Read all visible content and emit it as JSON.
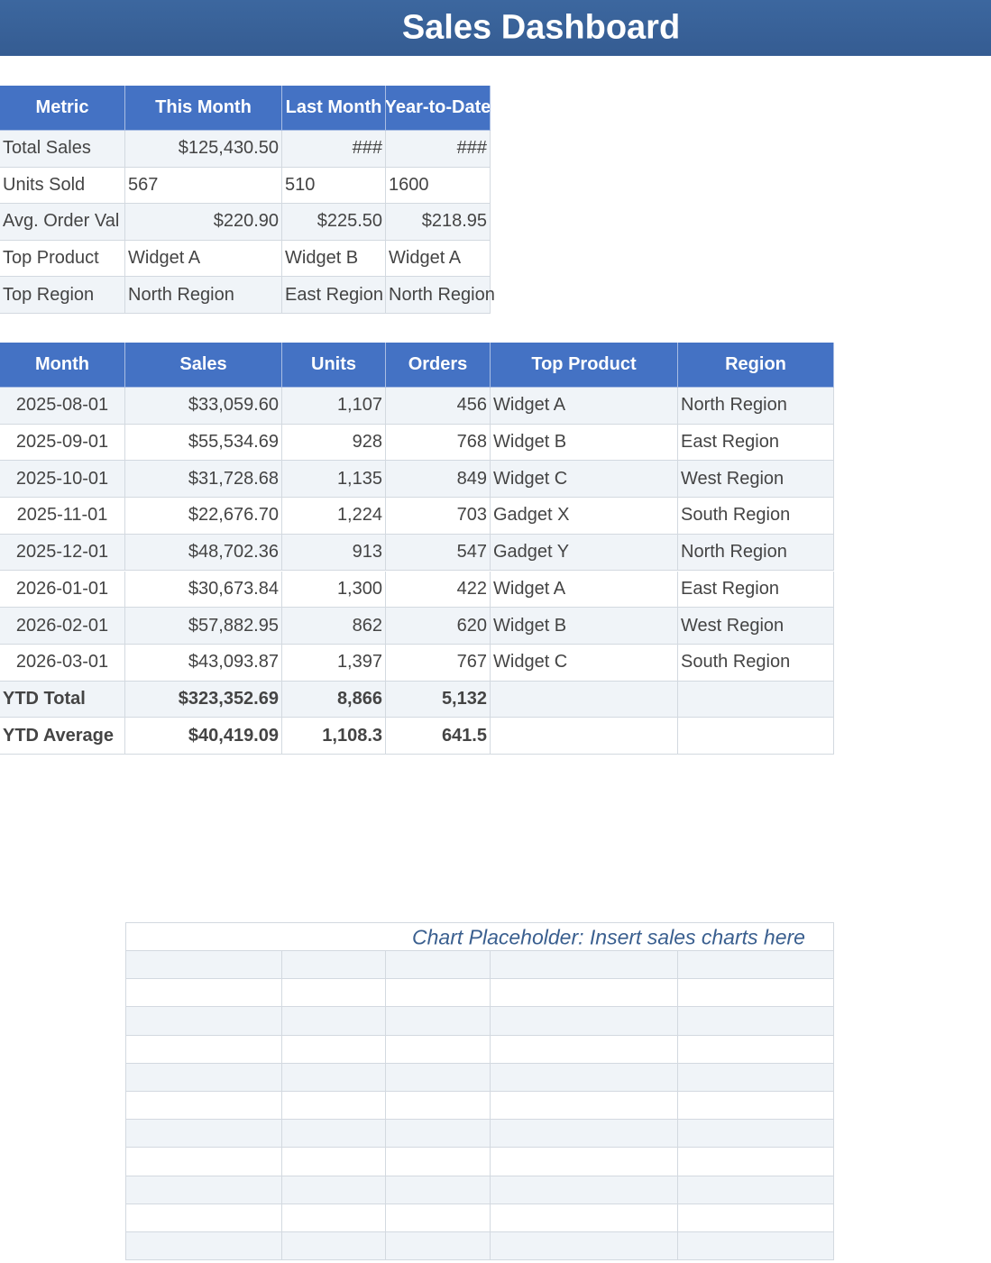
{
  "header": {
    "title": "Sales Dashboard"
  },
  "summary": {
    "columns": [
      "Metric",
      "This Month",
      "Last Month",
      "Year-to-Date"
    ],
    "rows": [
      [
        "Total Sales",
        "$125,430.50",
        "###",
        "###"
      ],
      [
        "Units Sold",
        "567",
        "510",
        "1600"
      ],
      [
        "Avg. Order Val",
        "$220.90",
        "$225.50",
        "$218.95"
      ],
      [
        "Top Product",
        "Widget A",
        "Widget B",
        "Widget A"
      ],
      [
        "Top Region",
        "North Region",
        "East Region",
        "North Region"
      ]
    ]
  },
  "monthly": {
    "columns": [
      "Month",
      "Sales",
      "Units",
      "Orders",
      "Top Product",
      "Region"
    ],
    "rows": [
      [
        "2025-08-01",
        "$33,059.60",
        "1,107",
        "456",
        "Widget A",
        "North Region"
      ],
      [
        "2025-09-01",
        "$55,534.69",
        "928",
        "768",
        "Widget B",
        "East Region"
      ],
      [
        "2025-10-01",
        "$31,728.68",
        "1,135",
        "849",
        "Widget C",
        "West Region"
      ],
      [
        "2025-11-01",
        "$22,676.70",
        "1,224",
        "703",
        "Gadget X",
        "South Region"
      ],
      [
        "2025-12-01",
        "$48,702.36",
        "913",
        "547",
        "Gadget Y",
        "North Region"
      ],
      [
        "2026-01-01",
        "$30,673.84",
        "1,300",
        "422",
        "Widget A",
        "East Region"
      ],
      [
        "2026-02-01",
        "$57,882.95",
        "862",
        "620",
        "Widget B",
        "West Region"
      ],
      [
        "2026-03-01",
        "$43,093.87",
        "1,397",
        "767",
        "Widget C",
        "South Region"
      ]
    ],
    "totals": [
      [
        "YTD Total",
        "$323,352.69",
        "8,866",
        "5,132"
      ],
      [
        "YTD Average",
        "$40,419.09",
        "1,108.3",
        "641.5"
      ]
    ]
  },
  "placeholder": {
    "text": "Chart Placeholder: Insert sales charts here"
  }
}
